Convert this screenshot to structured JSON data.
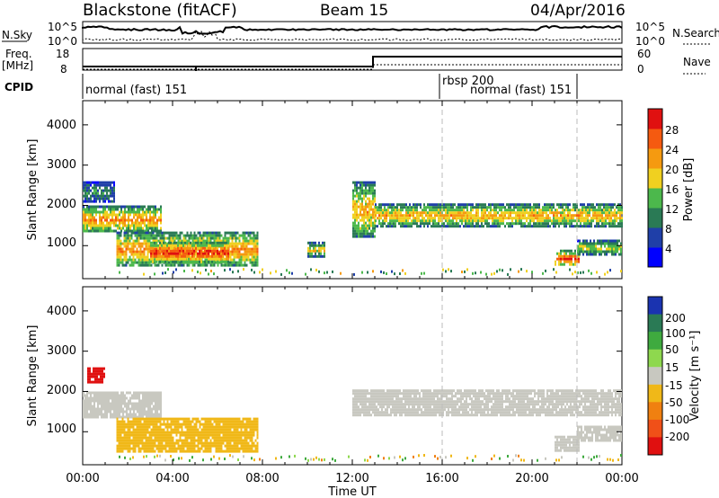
{
  "header": {
    "radar": "Blackstone (fitACF)",
    "beam": "Beam 15",
    "date": "04/Apr/2016"
  },
  "noise_panel": {
    "left_label": "N.Sky",
    "right_label": "N.Search",
    "left_ticks": [
      "10^5",
      "10^0"
    ],
    "right_ticks": [
      "10^5",
      "10^0"
    ]
  },
  "freq_panel": {
    "left_label": "Freq.",
    "left_unit": "[MHz]",
    "right_label": "Nave",
    "left_ticks": [
      "18",
      "8"
    ],
    "right_ticks": [
      "60",
      "0"
    ]
  },
  "cpid_panel": {
    "label": "CPID",
    "segments": [
      "normal (fast) 151",
      "rbsp 200",
      "normal (fast) 151"
    ]
  },
  "power_panel": {
    "ylabel": "Slant Range [km]",
    "yticks": [
      "1000",
      "2000",
      "3000",
      "4000"
    ],
    "colorbar_label": "Power [dB]",
    "colorbar_ticks": [
      "4",
      "8",
      "12",
      "16",
      "20",
      "24",
      "28"
    ],
    "colors": [
      "#0000ff",
      "#1f3fa8",
      "#2a7a55",
      "#4cb84c",
      "#f0d020",
      "#f59a10",
      "#f55a10",
      "#e01010"
    ]
  },
  "velocity_panel": {
    "ylabel": "Slant Range [km]",
    "yticks": [
      "1000",
      "2000",
      "3000",
      "4000"
    ],
    "colorbar_label": "Velocity [m s⁻¹]",
    "colorbar_ticks": [
      "200",
      "100",
      "50",
      "15",
      "-15",
      "-50",
      "-100",
      "-200"
    ],
    "colors": [
      "#1a33b0",
      "#2a7a55",
      "#3faa3f",
      "#8ed84e",
      "#c8c8c0",
      "#f0b818",
      "#f08010",
      "#f05018",
      "#e01010"
    ]
  },
  "xaxis": {
    "label": "Time UT",
    "ticks": [
      "00:00",
      "04:00",
      "08:00",
      "12:00",
      "16:00",
      "20:00",
      "00:00"
    ]
  },
  "chart_data": {
    "type": "heatmap",
    "x_range_hours": [
      0,
      24
    ],
    "y_range_km": [
      180,
      4600
    ],
    "power_regions": [
      {
        "t0": 0.0,
        "t1": 3.5,
        "r0": 1350,
        "r1": 2000,
        "level": 20
      },
      {
        "t0": 0.0,
        "t1": 1.4,
        "r0": 2100,
        "r1": 2600,
        "level": 8
      },
      {
        "t0": 1.5,
        "t1": 7.8,
        "r0": 500,
        "r1": 1350,
        "level": 20
      },
      {
        "t0": 3.0,
        "t1": 6.5,
        "r0": 600,
        "r1": 1100,
        "level": 26
      },
      {
        "t0": 10.0,
        "t1": 10.8,
        "r0": 750,
        "r1": 1100,
        "level": 16
      },
      {
        "t0": 12.0,
        "t1": 13.0,
        "r0": 1200,
        "r1": 2600,
        "level": 18
      },
      {
        "t0": 13.0,
        "t1": 24.0,
        "r0": 1500,
        "r1": 2050,
        "level": 18
      },
      {
        "t0": 21.0,
        "t1": 22.1,
        "r0": 500,
        "r1": 900,
        "level": 24
      },
      {
        "t0": 22.0,
        "t1": 24.0,
        "r0": 800,
        "r1": 1150,
        "level": 14
      }
    ],
    "velocity_regions": [
      {
        "t0": 0.0,
        "t1": 3.5,
        "r0": 1350,
        "r1": 2000,
        "velocity": 0
      },
      {
        "t0": 0.2,
        "t1": 1.0,
        "r0": 2200,
        "r1": 2600,
        "velocity": -200
      },
      {
        "t0": 1.5,
        "t1": 7.8,
        "r0": 500,
        "r1": 1350,
        "velocity": -40
      },
      {
        "t0": 12.0,
        "t1": 24.0,
        "r0": 1400,
        "r1": 2050,
        "velocity": 0
      },
      {
        "t0": 21.0,
        "t1": 22.1,
        "r0": 500,
        "r1": 900,
        "velocity": 0
      },
      {
        "t0": 22.0,
        "t1": 24.0,
        "r0": 800,
        "r1": 1150,
        "velocity": 0
      }
    ],
    "mode_change_hours": [
      16.0,
      22.0
    ]
  }
}
